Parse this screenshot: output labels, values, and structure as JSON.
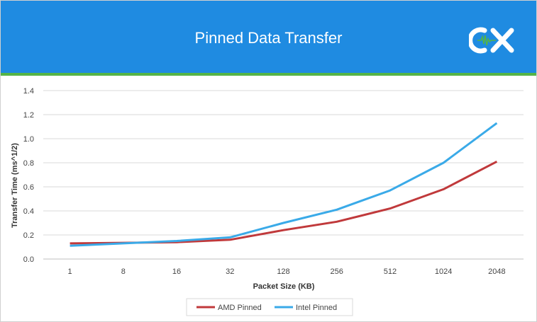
{
  "header": {
    "title": "Pinned Data Transfer",
    "logo_text": "CX",
    "banner_color": "#1f8be1",
    "accent_color": "#55b447"
  },
  "chart_data": {
    "type": "line",
    "title": "Pinned Data Transfer",
    "xlabel": "Packet Size (KB)",
    "ylabel": "Transfer Time (ms^1/2)",
    "categories": [
      "1",
      "8",
      "16",
      "32",
      "128",
      "256",
      "512",
      "1024",
      "2048"
    ],
    "ylim": [
      0,
      1.4
    ],
    "yticks": [
      0.0,
      0.2,
      0.4,
      0.6,
      0.8,
      1.0,
      1.2,
      1.4
    ],
    "ytick_labels": [
      "0.0",
      "0.2",
      "0.4",
      "0.6",
      "0.8",
      "1.0",
      "1.2",
      "1.4"
    ],
    "grid": true,
    "legend_position": "bottom",
    "series": [
      {
        "name": "AMD Pinned",
        "color": "#c0393b",
        "values": [
          0.13,
          0.135,
          0.14,
          0.16,
          0.24,
          0.31,
          0.42,
          0.58,
          0.81
        ]
      },
      {
        "name": "Intel Pinned",
        "color": "#3aaae8",
        "values": [
          0.11,
          0.13,
          0.15,
          0.18,
          0.3,
          0.41,
          0.57,
          0.8,
          1.13
        ]
      }
    ]
  }
}
